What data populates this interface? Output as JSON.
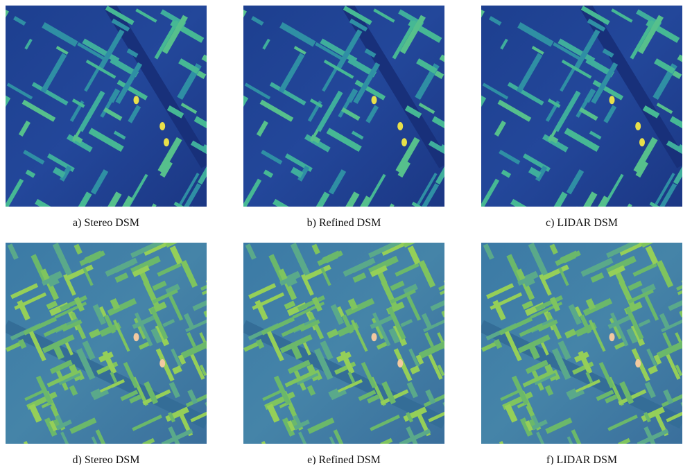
{
  "panels": [
    {
      "caption": "a) Stereo DSM"
    },
    {
      "caption": "b) Refined DSM"
    },
    {
      "caption": "c) LIDAR DSM"
    },
    {
      "caption": "d) Stereo DSM"
    },
    {
      "caption": "e) Refined DSM"
    },
    {
      "caption": "f) LIDAR DSM"
    }
  ]
}
